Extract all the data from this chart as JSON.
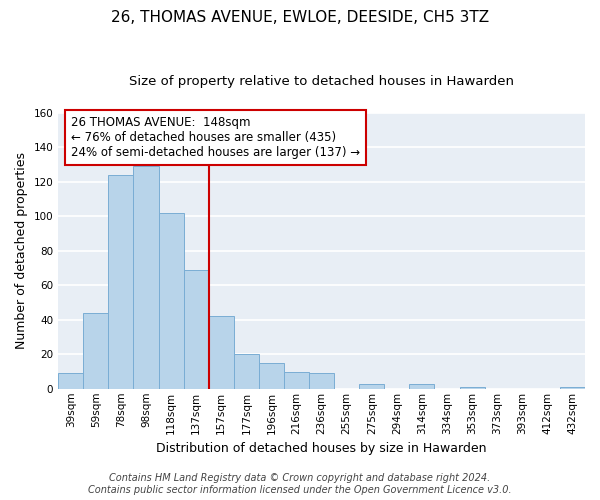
{
  "title": "26, THOMAS AVENUE, EWLOE, DEESIDE, CH5 3TZ",
  "subtitle": "Size of property relative to detached houses in Hawarden",
  "xlabel": "Distribution of detached houses by size in Hawarden",
  "ylabel": "Number of detached properties",
  "bar_labels": [
    "39sqm",
    "59sqm",
    "78sqm",
    "98sqm",
    "118sqm",
    "137sqm",
    "157sqm",
    "177sqm",
    "196sqm",
    "216sqm",
    "236sqm",
    "255sqm",
    "275sqm",
    "294sqm",
    "314sqm",
    "334sqm",
    "353sqm",
    "373sqm",
    "393sqm",
    "412sqm",
    "432sqm"
  ],
  "bar_values": [
    9,
    44,
    124,
    129,
    102,
    69,
    42,
    20,
    15,
    10,
    9,
    0,
    3,
    0,
    3,
    0,
    1,
    0,
    0,
    0,
    1
  ],
  "bar_color": "#b8d4ea",
  "bar_edge_color": "#7aadd4",
  "bg_color": "#e8eef5",
  "ylim": [
    0,
    160
  ],
  "yticks": [
    0,
    20,
    40,
    60,
    80,
    100,
    120,
    140,
    160
  ],
  "vline_x": 6.0,
  "vline_color": "#cc0000",
  "annotation_title": "26 THOMAS AVENUE:  148sqm",
  "annotation_line1": "← 76% of detached houses are smaller (435)",
  "annotation_line2": "24% of semi-detached houses are larger (137) →",
  "annotation_box_color": "#ffffff",
  "annotation_box_edge": "#cc0000",
  "footer1": "Contains HM Land Registry data © Crown copyright and database right 2024.",
  "footer2": "Contains public sector information licensed under the Open Government Licence v3.0.",
  "title_fontsize": 11,
  "subtitle_fontsize": 9.5,
  "xlabel_fontsize": 9,
  "ylabel_fontsize": 9,
  "footer_fontsize": 7,
  "annotation_fontsize": 8.5,
  "tick_fontsize": 7.5
}
